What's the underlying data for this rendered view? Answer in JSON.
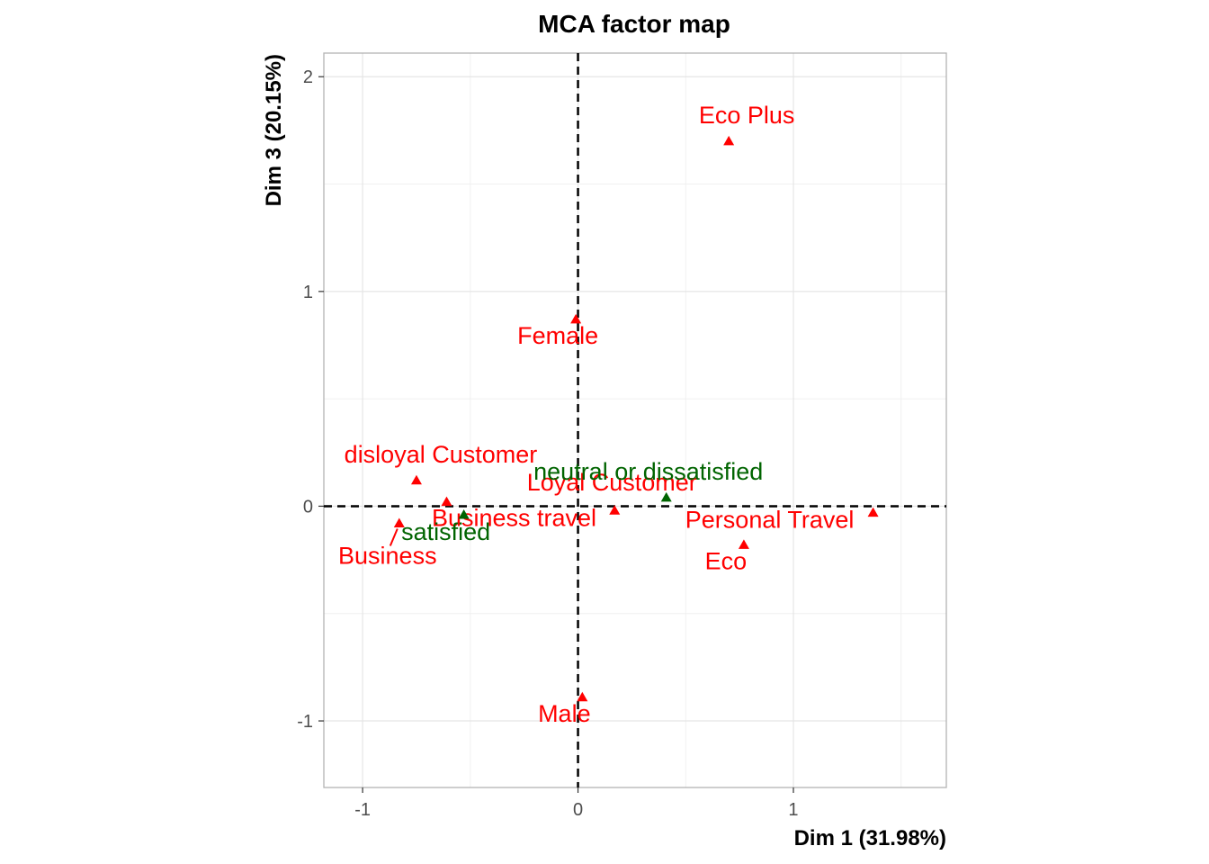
{
  "chart_data": {
    "type": "scatter",
    "title": "MCA factor map",
    "xlabel": "Dim 1 (31.98%)",
    "ylabel": "Dim 3 (20.15%)",
    "xlim": [
      -1.18,
      1.71
    ],
    "ylim": [
      -1.31,
      2.11
    ],
    "x_ticks": [
      -1,
      0,
      1
    ],
    "x_tick_labels": [
      "-1",
      "0",
      "1"
    ],
    "y_ticks": [
      -1,
      0,
      1,
      2
    ],
    "y_tick_labels": [
      "-1",
      "0",
      "1",
      "2"
    ],
    "grid": true,
    "reference_lines": "dashed at x=0 and y=0",
    "colors": {
      "group_red": "#ff0000",
      "group_green": "#006400"
    },
    "series": [
      {
        "color": "#ff0000",
        "points": [
          {
            "label": "Eco Plus",
            "x": 0.7,
            "y": 1.7
          },
          {
            "label": "Female",
            "x": -0.01,
            "y": 0.87
          },
          {
            "label": "disloyal Customer",
            "x": -0.75,
            "y": 0.12
          },
          {
            "label": "Business travel",
            "x": -0.61,
            "y": 0.02
          },
          {
            "label": "Loyal Customer",
            "x": 0.17,
            "y": -0.02
          },
          {
            "label": "Personal Travel",
            "x": 1.37,
            "y": -0.03
          },
          {
            "label": "Eco",
            "x": 0.77,
            "y": -0.18
          },
          {
            "label": "Business",
            "x": -0.83,
            "y": -0.08
          },
          {
            "label": "Male",
            "x": 0.02,
            "y": -0.89
          }
        ]
      },
      {
        "color": "#006400",
        "points": [
          {
            "label": "neutral or dissatisfied",
            "x": 0.41,
            "y": 0.04
          },
          {
            "label": "satisfied",
            "x": -0.53,
            "y": -0.04
          }
        ]
      }
    ]
  }
}
